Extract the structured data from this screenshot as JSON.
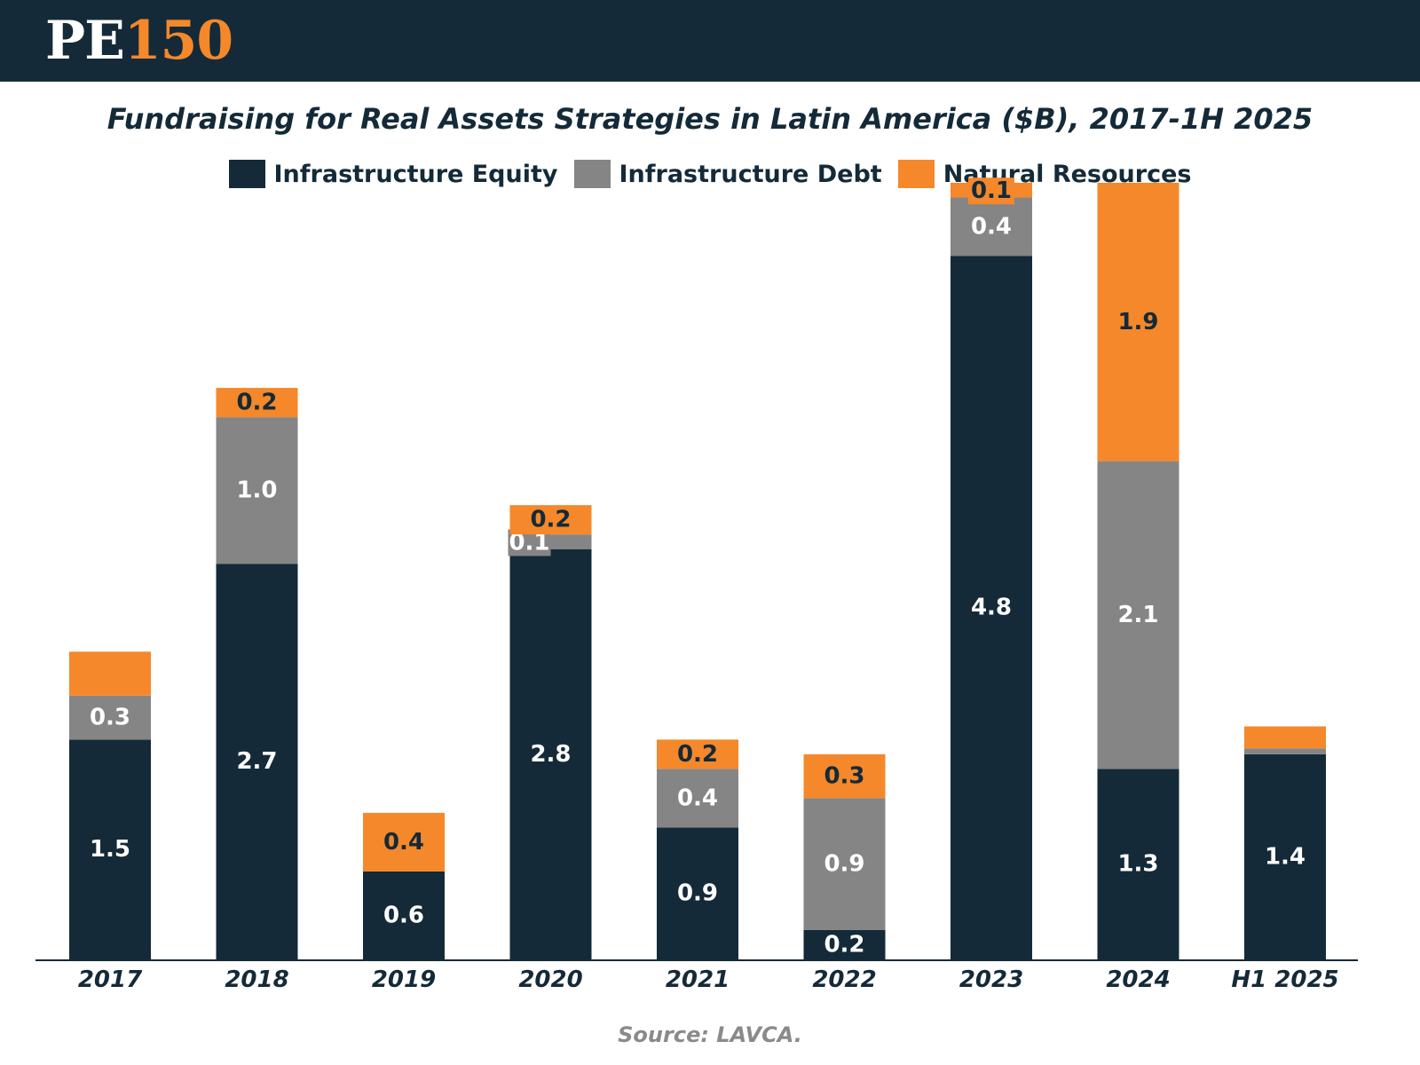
{
  "logo": {
    "pe": "PE",
    "num": "150"
  },
  "colors": {
    "equity": "#142a38",
    "debt": "#858585",
    "natural": "#f4882a",
    "header": "#142a38"
  },
  "chart_data": {
    "type": "bar",
    "stacked": true,
    "title": "Fundraising for Real Assets Strategies in Latin America ($B), 2017-1H 2025",
    "categories": [
      "2017",
      "2018",
      "2019",
      "2020",
      "2021",
      "2022",
      "2023",
      "2024",
      "H1 2025"
    ],
    "series": [
      {
        "name": "Infrastructure Equity",
        "color": "#142a38",
        "values": [
          1.5,
          2.7,
          0.6,
          2.8,
          0.9,
          0.2,
          4.8,
          1.3,
          1.4
        ],
        "labels": [
          "1.5",
          "2.7",
          "0.6",
          "2.8",
          "0.9",
          "0.2",
          "4.8",
          "1.3",
          "1.4"
        ]
      },
      {
        "name": "Infrastructure Debt",
        "color": "#858585",
        "values": [
          0.3,
          1.0,
          0.0,
          0.1,
          0.4,
          0.9,
          0.4,
          2.1,
          0.04
        ],
        "labels": [
          "0.3",
          "1.0",
          "",
          "0.1",
          "0.4",
          "0.9",
          "0.4",
          "2.1",
          ""
        ]
      },
      {
        "name": "Natural Resources",
        "color": "#f4882a",
        "values": [
          0.3,
          0.2,
          0.4,
          0.2,
          0.2,
          0.3,
          0.1,
          1.9,
          0.15
        ],
        "labels": [
          "",
          "0.2",
          "0.4",
          "0.2",
          "0.2",
          "0.3",
          "0.1",
          "1.9",
          ""
        ]
      }
    ],
    "ylim": [
      0,
      5.3
    ],
    "xlabel": "",
    "ylabel": "",
    "legend_position": "top-center",
    "source": "Source: LAVCA."
  }
}
